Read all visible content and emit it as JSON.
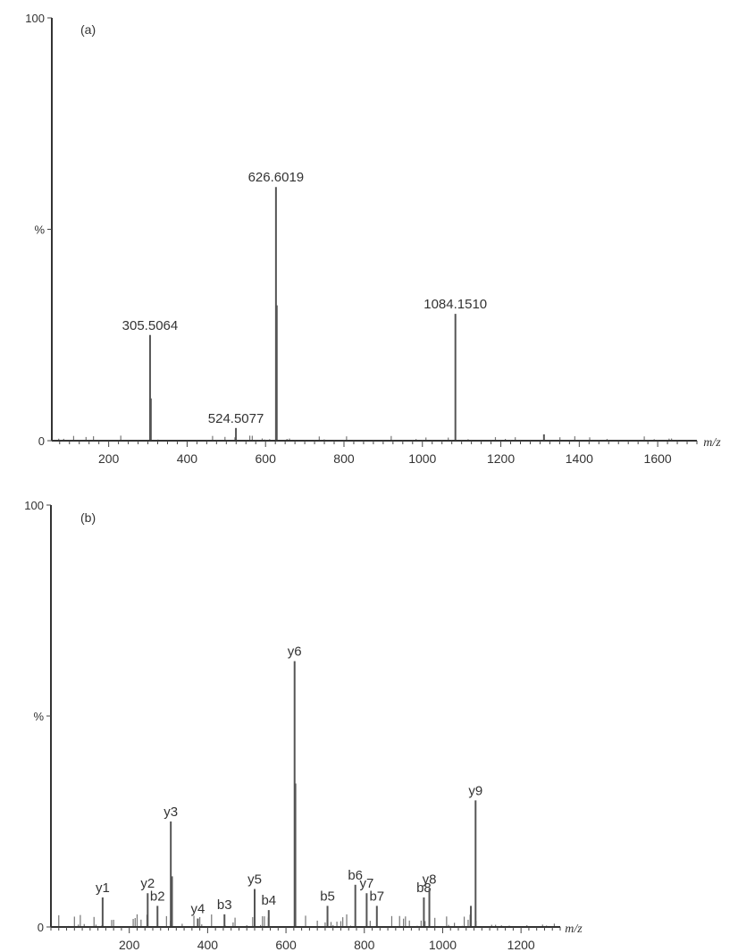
{
  "chart_data": [
    {
      "type": "bar",
      "panel_label": "(a)",
      "xlabel": "m/z",
      "ylabel": "%",
      "y_ticks": [
        {
          "value": 100,
          "label": "100"
        },
        {
          "value": 50,
          "label": "%"
        },
        {
          "value": 0,
          "label": "0"
        }
      ],
      "xlim": [
        55,
        1700
      ],
      "ylim": [
        0,
        100
      ],
      "x_ticks": [
        200,
        400,
        600,
        800,
        1000,
        1200,
        1400,
        1600
      ],
      "peaks": [
        {
          "x": 305.5064,
          "y": 25,
          "label": "305.5064"
        },
        {
          "x": 307.5,
          "y": 10,
          "label": ""
        },
        {
          "x": 524.5077,
          "y": 3,
          "label": "524.5077"
        },
        {
          "x": 626.6019,
          "y": 60,
          "label": "626.6019"
        },
        {
          "x": 628.6,
          "y": 32,
          "label": ""
        },
        {
          "x": 1084.151,
          "y": 30,
          "label": "1084.1510"
        },
        {
          "x": 1310,
          "y": 1.5,
          "label": ""
        }
      ]
    },
    {
      "type": "bar",
      "panel_label": "(b)",
      "xlabel": "m/z",
      "ylabel": "%",
      "y_ticks": [
        {
          "value": 100,
          "label": "100"
        },
        {
          "value": 50,
          "label": "%"
        },
        {
          "value": 0,
          "label": "0"
        }
      ],
      "xlim": [
        0,
        1300
      ],
      "ylim": [
        0,
        100
      ],
      "x_ticks": [
        200,
        400,
        600,
        800,
        1000,
        1200
      ],
      "peaks": [
        {
          "x": 132,
          "y": 7,
          "label": "y1"
        },
        {
          "x": 247,
          "y": 8,
          "label": "y2"
        },
        {
          "x": 272,
          "y": 5,
          "label": "b2"
        },
        {
          "x": 306,
          "y": 25,
          "label": "y3"
        },
        {
          "x": 309,
          "y": 12,
          "label": ""
        },
        {
          "x": 375,
          "y": 2,
          "label": "y4"
        },
        {
          "x": 443,
          "y": 3,
          "label": "b3"
        },
        {
          "x": 520,
          "y": 9,
          "label": "y5"
        },
        {
          "x": 556,
          "y": 4,
          "label": "b4"
        },
        {
          "x": 622,
          "y": 63,
          "label": "y6"
        },
        {
          "x": 624,
          "y": 34,
          "label": ""
        },
        {
          "x": 706,
          "y": 5,
          "label": "b5"
        },
        {
          "x": 777,
          "y": 10,
          "label": "b6"
        },
        {
          "x": 806,
          "y": 8,
          "label": "y7"
        },
        {
          "x": 832,
          "y": 5,
          "label": "b7"
        },
        {
          "x": 952,
          "y": 7,
          "label": "b8"
        },
        {
          "x": 966,
          "y": 9,
          "label": "y8"
        },
        {
          "x": 1084,
          "y": 30,
          "label": "y9"
        },
        {
          "x": 1072,
          "y": 5,
          "label": ""
        }
      ]
    }
  ]
}
